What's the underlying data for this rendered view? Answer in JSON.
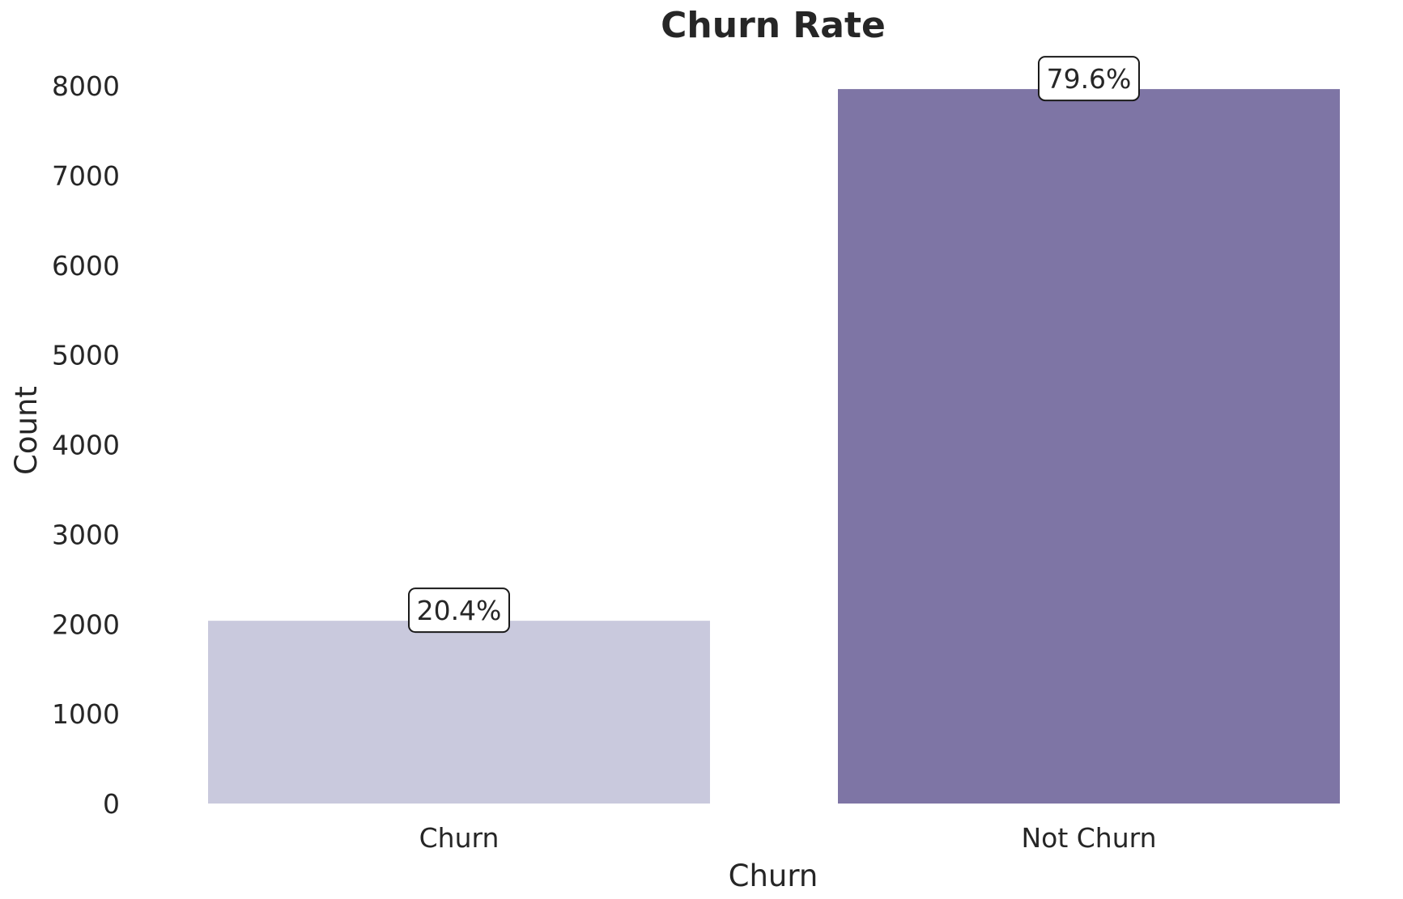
{
  "chart_data": {
    "type": "bar",
    "title": "Churn Rate",
    "xlabel": "Churn",
    "ylabel": "Count",
    "categories": [
      "Churn",
      "Not Churn"
    ],
    "values": [
      2037,
      7963
    ],
    "data_labels": [
      "20.4%",
      "79.6%"
    ],
    "colors": [
      "#c9c9dd",
      "#7e75a5"
    ],
    "ylim": [
      0,
      8000
    ],
    "yticks": [
      0,
      1000,
      2000,
      3000,
      4000,
      5000,
      6000,
      7000,
      8000
    ],
    "grid": false,
    "legend": "none"
  }
}
